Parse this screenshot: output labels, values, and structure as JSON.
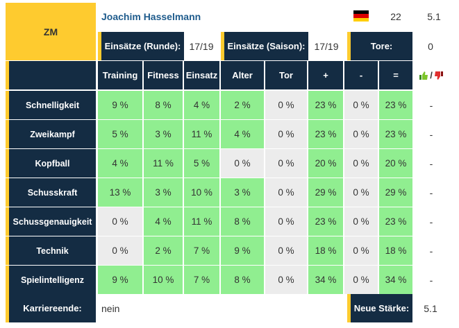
{
  "player": {
    "position": "ZM",
    "name": "Joachim Hasselmann",
    "flag_icon": "germany-flag",
    "age": "22",
    "strength": "5.1"
  },
  "summary": {
    "einsaetze_runde_label": "Einsätze (Runde):",
    "einsaetze_runde_value": "17/19",
    "einsaetze_saison_label": "Einsätze (Saison):",
    "einsaetze_saison_value": "17/19",
    "tore_label": "Tore:",
    "tore_value": "0"
  },
  "table": {
    "headers": [
      "Training",
      "Fitness",
      "Einsatz",
      "Alter",
      "Tor",
      "+",
      "-",
      "="
    ],
    "thumbs_separator": "/",
    "rows": [
      {
        "label": "Schnelligkeit",
        "cells": [
          "9 %",
          "8 %",
          "4 %",
          "2 %",
          "0 %",
          "23 %",
          "0 %",
          "23 %"
        ],
        "trend": "-"
      },
      {
        "label": "Zweikampf",
        "cells": [
          "5 %",
          "3 %",
          "11 %",
          "4 %",
          "0 %",
          "23 %",
          "0 %",
          "23 %"
        ],
        "trend": "-"
      },
      {
        "label": "Kopfball",
        "cells": [
          "4 %",
          "11 %",
          "5 %",
          "0 %",
          "0 %",
          "20 %",
          "0 %",
          "20 %"
        ],
        "trend": "-"
      },
      {
        "label": "Schusskraft",
        "cells": [
          "13 %",
          "3 %",
          "10 %",
          "3 %",
          "0 %",
          "29 %",
          "0 %",
          "29 %"
        ],
        "trend": "-"
      },
      {
        "label": "Schussgenauigkeit",
        "cells": [
          "0 %",
          "4 %",
          "11 %",
          "8 %",
          "0 %",
          "23 %",
          "0 %",
          "23 %"
        ],
        "trend": "-"
      },
      {
        "label": "Technik",
        "cells": [
          "0 %",
          "2 %",
          "7 %",
          "9 %",
          "0 %",
          "18 %",
          "0 %",
          "18 %"
        ],
        "trend": "-"
      },
      {
        "label": "Spielintelligenz",
        "cells": [
          "9 %",
          "10 %",
          "7 %",
          "8 %",
          "0 %",
          "34 %",
          "0 %",
          "34 %"
        ],
        "trend": "-"
      }
    ]
  },
  "footer": {
    "karriereende_label": "Karriereende:",
    "karriereende_value": "nein",
    "neue_staerke_label": "Neue Stärke:",
    "neue_staerke_value": "5.1"
  },
  "colors": {
    "accent": "#fecb2f",
    "header_bg": "#142c43",
    "green": "#90ee90",
    "grey": "#ececec",
    "name": "#1e5b8c"
  }
}
